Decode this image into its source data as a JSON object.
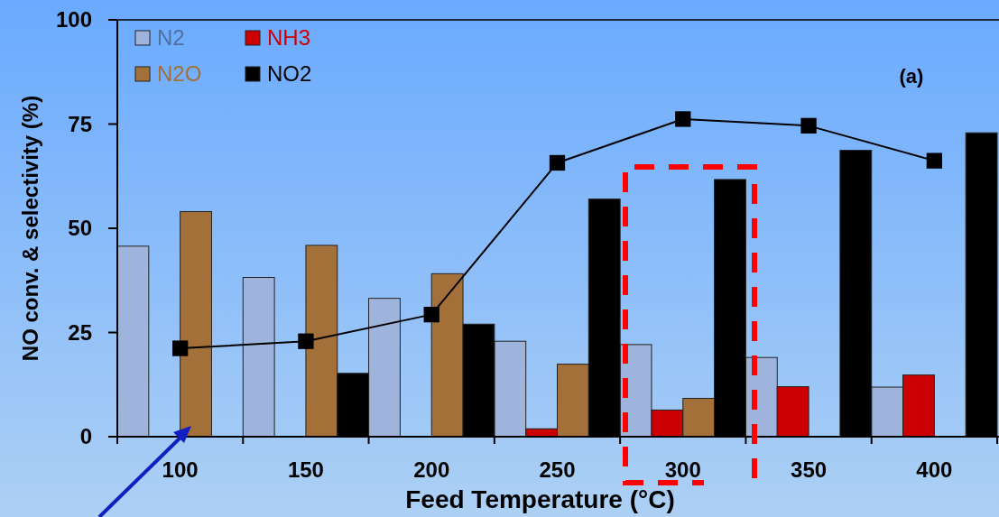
{
  "chart_data": {
    "type": "bar",
    "xlabel": "Feed Temperature (°C)",
    "ylabel": "NO conv. & selectivity (%)",
    "categories": [
      "100",
      "150",
      "200",
      "250",
      "300",
      "350",
      "400"
    ],
    "series": [
      {
        "name": "N2",
        "color": "#9fb4dc",
        "values": [
          45.7,
          38.2,
          33.2,
          22.9,
          22.1,
          19.0,
          11.9
        ]
      },
      {
        "name": "NH3",
        "color": "#cc0000",
        "values": [
          null,
          null,
          null,
          1.9,
          6.4,
          12.0,
          14.8
        ]
      },
      {
        "name": "N2O",
        "color": "#a3703a",
        "values": [
          54.0,
          45.9,
          39.1,
          17.4,
          9.2,
          null,
          null
        ]
      },
      {
        "name": "NO2",
        "color": "#000000",
        "values": [
          null,
          15.2,
          27.0,
          57.0,
          61.7,
          68.7,
          72.9
        ]
      },
      {
        "type": "line",
        "color": "#000000",
        "marker": "square",
        "values": [
          21.2,
          22.9,
          29.3,
          65.7,
          76.2,
          74.6,
          66.2
        ]
      }
    ],
    "ylim": [
      0,
      100
    ],
    "yticks": [
      0,
      25,
      50,
      75,
      100
    ],
    "legend": "top left",
    "annotations": [
      "(a)"
    ]
  }
}
